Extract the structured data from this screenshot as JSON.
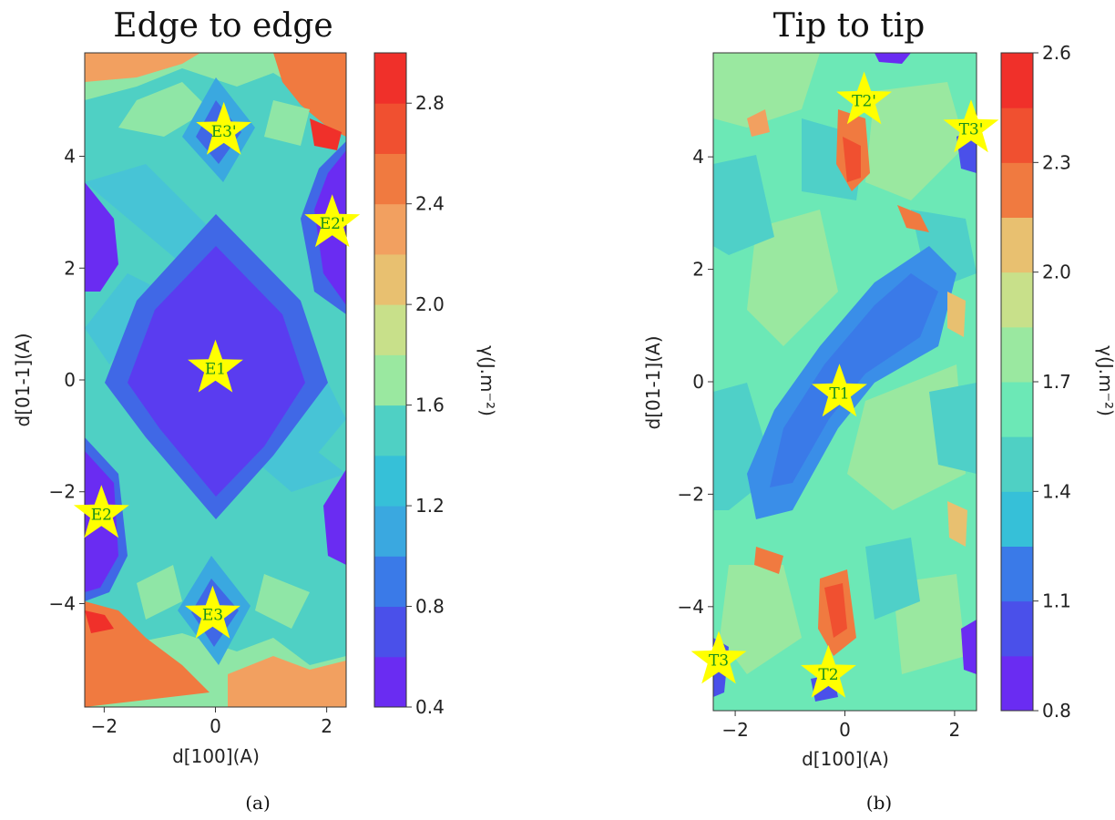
{
  "chart_data": [
    {
      "type": "heatmap",
      "title": "Edge to edge",
      "xlabel": "d[100](A)",
      "ylabel": "d[01-1](A)",
      "xlim": [
        -2.35,
        2.35
      ],
      "ylim": [
        -5.85,
        5.85
      ],
      "xticks": [
        -2,
        0,
        2
      ],
      "yticks": [
        -4,
        -2,
        0,
        2,
        4
      ],
      "colorbar": {
        "label": "γ(J.m⁻²)",
        "min": 0.4,
        "max": 3.0,
        "levels": [
          0.4,
          0.6,
          0.8,
          1.0,
          1.2,
          1.4,
          1.6,
          1.8,
          2.0,
          2.2,
          2.4,
          2.6,
          2.8,
          3.0
        ],
        "ticks": [
          0.4,
          0.8,
          1.2,
          1.6,
          2.0,
          2.4,
          2.8
        ]
      },
      "markers": [
        {
          "label": "E1",
          "x": 0.0,
          "y": 0.2
        },
        {
          "label": "E2",
          "x": -2.05,
          "y": -2.4
        },
        {
          "label": "E2'",
          "x": 2.1,
          "y": 2.8
        },
        {
          "label": "E3",
          "x": -0.05,
          "y": -4.2
        },
        {
          "label": "E3'",
          "x": 0.15,
          "y": 4.45
        }
      ],
      "caption": "(a)"
    },
    {
      "type": "heatmap",
      "title": "Tip to tip",
      "xlabel": "d[100](A)",
      "ylabel": "d[01-1](A)",
      "xlim": [
        -2.4,
        2.4
      ],
      "ylim": [
        -5.85,
        5.85
      ],
      "xticks": [
        -2,
        0,
        2
      ],
      "yticks": [
        -4,
        -2,
        0,
        2,
        4
      ],
      "colorbar": {
        "label": "γ(J.m⁻²)",
        "min": 0.8,
        "max": 2.6,
        "levels": [
          0.8,
          0.95,
          1.1,
          1.25,
          1.4,
          1.55,
          1.7,
          1.85,
          2.0,
          2.15,
          2.3,
          2.45,
          2.6
        ],
        "ticks": [
          0.8,
          1.1,
          1.4,
          1.7,
          2.0,
          2.3,
          2.6
        ]
      },
      "markers": [
        {
          "label": "T1",
          "x": -0.1,
          "y": -0.2
        },
        {
          "label": "T2",
          "x": -0.3,
          "y": -5.2
        },
        {
          "label": "T2'",
          "x": 0.35,
          "y": 5.0
        },
        {
          "label": "T3",
          "x": -2.3,
          "y": -4.95
        },
        {
          "label": "T3'",
          "x": 2.3,
          "y": 4.5
        }
      ],
      "caption": "(b)"
    }
  ],
  "colors": {
    "lowest": "#6a2cf2",
    "low": "#3f64e8",
    "mid_low": "#36b6d8",
    "mid": "#5fe0b6",
    "mid_high": "#9de89a",
    "high": "#f0b070",
    "highest": "#f0302a",
    "marker": "#ffff00",
    "marker_text": "#1a8f1a"
  }
}
